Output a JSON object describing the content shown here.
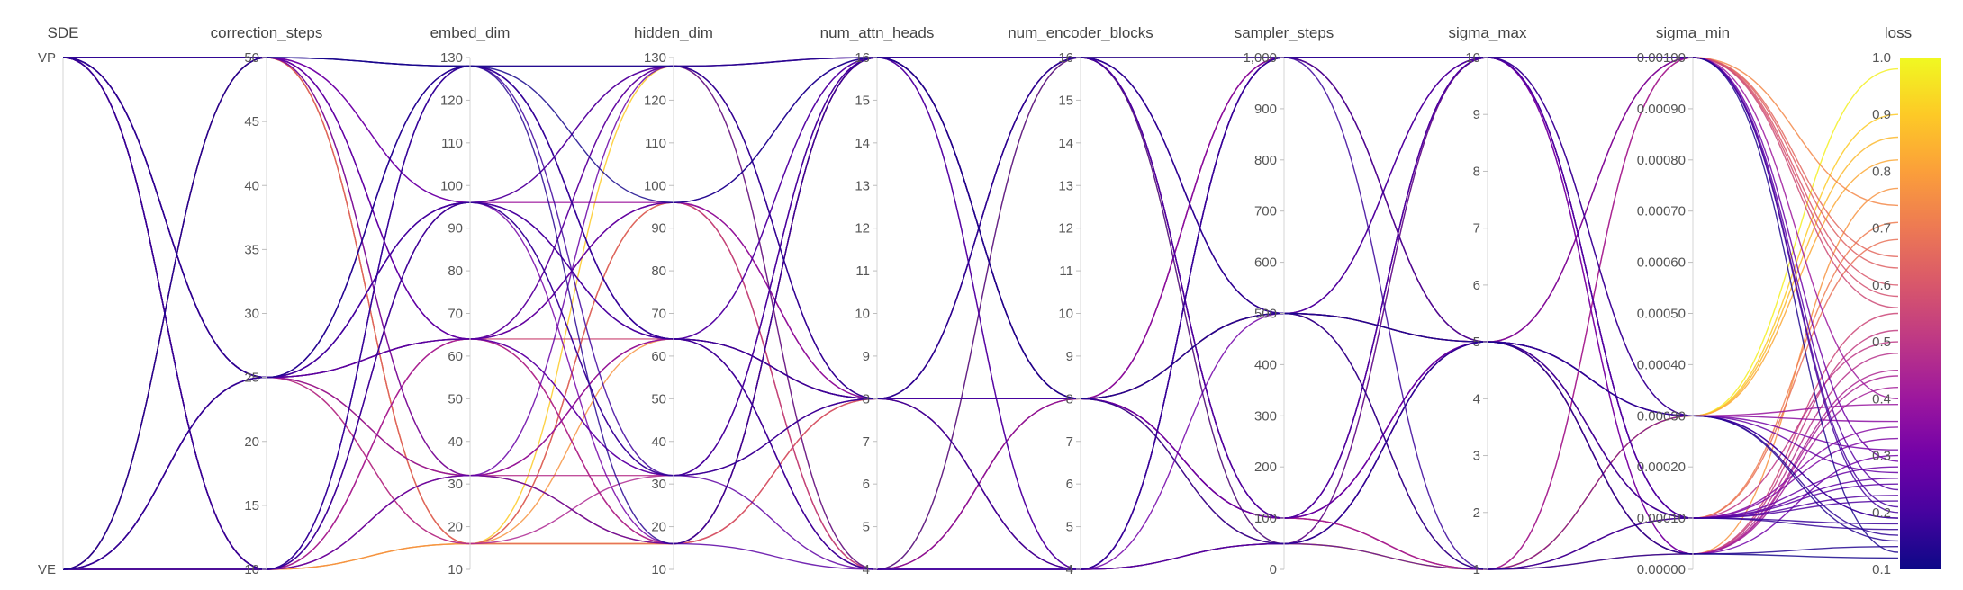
{
  "chart_data": {
    "type": "parallel-coordinates",
    "axes": [
      {
        "key": "SDE",
        "title": "SDE",
        "kind": "categorical",
        "categories": [
          "VE",
          "VP"
        ],
        "tick_labels": [
          "VE",
          "VP"
        ]
      },
      {
        "key": "correction_steps",
        "title": "correction_steps",
        "kind": "numeric",
        "range": [
          10,
          50
        ],
        "tick_labels": [
          "10",
          "15",
          "20",
          "25",
          "30",
          "35",
          "40",
          "45",
          "50"
        ]
      },
      {
        "key": "embed_dim",
        "title": "embed_dim",
        "kind": "numeric",
        "range": [
          10,
          130
        ],
        "tick_labels": [
          "10",
          "20",
          "30",
          "40",
          "50",
          "60",
          "70",
          "80",
          "90",
          "100",
          "110",
          "120",
          "130"
        ]
      },
      {
        "key": "hidden_dim",
        "title": "hidden_dim",
        "kind": "numeric",
        "range": [
          10,
          130
        ],
        "tick_labels": [
          "10",
          "20",
          "30",
          "40",
          "50",
          "60",
          "70",
          "80",
          "90",
          "100",
          "110",
          "120",
          "130"
        ]
      },
      {
        "key": "num_attn_heads",
        "title": "num_attn_heads",
        "kind": "numeric",
        "range": [
          4,
          16
        ],
        "tick_labels": [
          "4",
          "5",
          "6",
          "7",
          "8",
          "9",
          "10",
          "11",
          "12",
          "13",
          "14",
          "15",
          "16"
        ]
      },
      {
        "key": "num_encoder_blocks",
        "title": "num_encoder_blocks",
        "kind": "numeric",
        "range": [
          4,
          16
        ],
        "tick_labels": [
          "4",
          "5",
          "6",
          "7",
          "8",
          "9",
          "10",
          "11",
          "12",
          "13",
          "14",
          "15",
          "16"
        ]
      },
      {
        "key": "sampler_steps",
        "title": "sampler_steps",
        "kind": "numeric",
        "range": [
          0,
          1000
        ],
        "tick_labels": [
          "0",
          "100",
          "200",
          "300",
          "400",
          "500",
          "600",
          "700",
          "800",
          "900",
          "1,000"
        ]
      },
      {
        "key": "sigma_max",
        "title": "sigma_max",
        "kind": "numeric",
        "range": [
          1,
          10
        ],
        "tick_labels": [
          "1",
          "2",
          "3",
          "4",
          "5",
          "6",
          "7",
          "8",
          "9",
          "10"
        ]
      },
      {
        "key": "sigma_min",
        "title": "sigma_min",
        "kind": "numeric",
        "range": [
          0,
          0.001
        ],
        "tick_labels": [
          "0.00000",
          "0.00010",
          "0.00020",
          "0.00030",
          "0.00040",
          "0.00050",
          "0.00060",
          "0.00070",
          "0.00080",
          "0.00090",
          "0.00100"
        ]
      },
      {
        "key": "loss",
        "title": "loss",
        "kind": "numeric",
        "range": [
          0.1,
          1.0
        ],
        "tick_labels": [
          "0.1",
          "0.2",
          "0.3",
          "0.4",
          "0.5",
          "0.6",
          "0.7",
          "0.8",
          "0.9",
          "1.0"
        ]
      }
    ],
    "colorscale": {
      "name": "plasma",
      "variable": "loss",
      "stops": [
        "#0d0887",
        "#46039f",
        "#7201a8",
        "#9c179e",
        "#bd3786",
        "#d8576b",
        "#ed7953",
        "#fb9f3a",
        "#fdca26",
        "#f0f921"
      ]
    },
    "runs": [
      [
        "VP",
        50,
        128,
        128,
        16,
        16,
        1000,
        10,
        0.001,
        0.13
      ],
      [
        "VP",
        25,
        96,
        64,
        8,
        8,
        500,
        5,
        0.0003,
        0.19
      ],
      [
        "VP",
        10,
        32,
        16,
        4,
        4,
        50,
        1,
        0.0001,
        0.25
      ],
      [
        "VP",
        50,
        64,
        96,
        8,
        16,
        100,
        10,
        0.0003,
        0.36
      ],
      [
        "VP",
        25,
        16,
        32,
        16,
        8,
        1000,
        5,
        3e-05,
        0.45
      ],
      [
        "VP",
        10,
        128,
        64,
        4,
        16,
        500,
        10,
        0.001,
        0.2
      ],
      [
        "VP",
        50,
        32,
        128,
        8,
        4,
        50,
        5,
        0.0001,
        0.28
      ],
      [
        "VP",
        25,
        64,
        16,
        16,
        8,
        100,
        1,
        3e-05,
        0.55
      ],
      [
        "VP",
        10,
        96,
        32,
        8,
        16,
        1000,
        10,
        0.0003,
        0.16
      ],
      [
        "VP",
        50,
        16,
        96,
        4,
        8,
        500,
        5,
        0.001,
        0.6
      ],
      [
        "VP",
        25,
        128,
        64,
        16,
        4,
        50,
        10,
        0.0001,
        0.22
      ],
      [
        "VP",
        10,
        64,
        128,
        8,
        8,
        100,
        5,
        3e-05,
        0.42
      ],
      [
        "VP",
        50,
        96,
        16,
        16,
        16,
        500,
        1,
        0.0003,
        0.31
      ],
      [
        "VP",
        25,
        32,
        64,
        4,
        8,
        1000,
        5,
        0.0001,
        0.68
      ],
      [
        "VP",
        10,
        16,
        96,
        8,
        4,
        50,
        10,
        0.001,
        0.74
      ],
      [
        "VP",
        50,
        64,
        32,
        16,
        8,
        100,
        5,
        0.0003,
        0.27
      ],
      [
        "VP",
        25,
        128,
        128,
        8,
        16,
        500,
        1,
        3e-05,
        0.14
      ],
      [
        "VP",
        10,
        96,
        64,
        4,
        8,
        1000,
        10,
        0.0001,
        0.33
      ],
      [
        "VP",
        50,
        16,
        16,
        8,
        4,
        50,
        5,
        0.0003,
        0.82
      ],
      [
        "VP",
        25,
        64,
        96,
        16,
        16,
        100,
        10,
        0.001,
        0.24
      ],
      [
        "VP",
        10,
        32,
        32,
        8,
        8,
        500,
        5,
        3e-05,
        0.48
      ],
      [
        "VP",
        50,
        128,
        64,
        4,
        4,
        1000,
        1,
        0.0001,
        0.18
      ],
      [
        "VP",
        25,
        96,
        128,
        16,
        8,
        50,
        5,
        0.0003,
        0.39
      ],
      [
        "VP",
        10,
        64,
        16,
        8,
        16,
        100,
        10,
        0.001,
        0.58
      ],
      [
        "VE",
        50,
        128,
        96,
        16,
        8,
        500,
        5,
        3e-05,
        0.12
      ],
      [
        "VE",
        25,
        32,
        64,
        8,
        4,
        1000,
        10,
        0.0001,
        0.35
      ],
      [
        "VE",
        10,
        16,
        128,
        4,
        16,
        50,
        1,
        0.0003,
        0.9
      ],
      [
        "VE",
        50,
        96,
        32,
        8,
        8,
        100,
        5,
        0.001,
        0.29
      ],
      [
        "VE",
        25,
        64,
        16,
        16,
        16,
        500,
        10,
        3e-05,
        0.44
      ],
      [
        "VE",
        10,
        128,
        64,
        8,
        4,
        1000,
        5,
        0.0001,
        0.17
      ],
      [
        "VE",
        50,
        16,
        96,
        4,
        8,
        50,
        1,
        0.0003,
        0.98
      ],
      [
        "VE",
        25,
        96,
        128,
        16,
        16,
        100,
        10,
        0.001,
        0.21
      ],
      [
        "VE",
        10,
        32,
        64,
        8,
        8,
        500,
        5,
        3e-05,
        0.52
      ],
      [
        "VE",
        50,
        64,
        32,
        4,
        4,
        1000,
        10,
        0.0001,
        0.26
      ],
      [
        "VE",
        25,
        128,
        16,
        16,
        8,
        50,
        5,
        0.0003,
        0.15
      ],
      [
        "VE",
        10,
        96,
        96,
        8,
        16,
        100,
        1,
        0.001,
        0.4
      ],
      [
        "VE",
        50,
        16,
        64,
        8,
        8,
        500,
        5,
        3e-05,
        0.77
      ],
      [
        "VE",
        25,
        64,
        128,
        4,
        4,
        1000,
        10,
        0.0001,
        0.23
      ],
      [
        "VE",
        10,
        128,
        32,
        16,
        16,
        50,
        5,
        0.0003,
        0.19
      ],
      [
        "VE",
        50,
        32,
        16,
        8,
        8,
        100,
        1,
        0.001,
        0.63
      ],
      [
        "VE",
        25,
        96,
        64,
        16,
        4,
        500,
        10,
        3e-05,
        0.3
      ],
      [
        "VE",
        10,
        64,
        96,
        4,
        8,
        1000,
        5,
        0.0001,
        0.5
      ],
      [
        "VP",
        25,
        16,
        16,
        16,
        16,
        1000,
        10,
        0.001,
        0.65
      ],
      [
        "VE",
        25,
        32,
        16,
        16,
        8,
        100,
        1,
        0.0001,
        0.71
      ],
      [
        "VP",
        10,
        16,
        16,
        16,
        8,
        500,
        1,
        0.0003,
        0.86
      ],
      [
        "VE",
        25,
        64,
        64,
        8,
        8,
        100,
        5,
        0.001,
        0.56
      ]
    ]
  }
}
